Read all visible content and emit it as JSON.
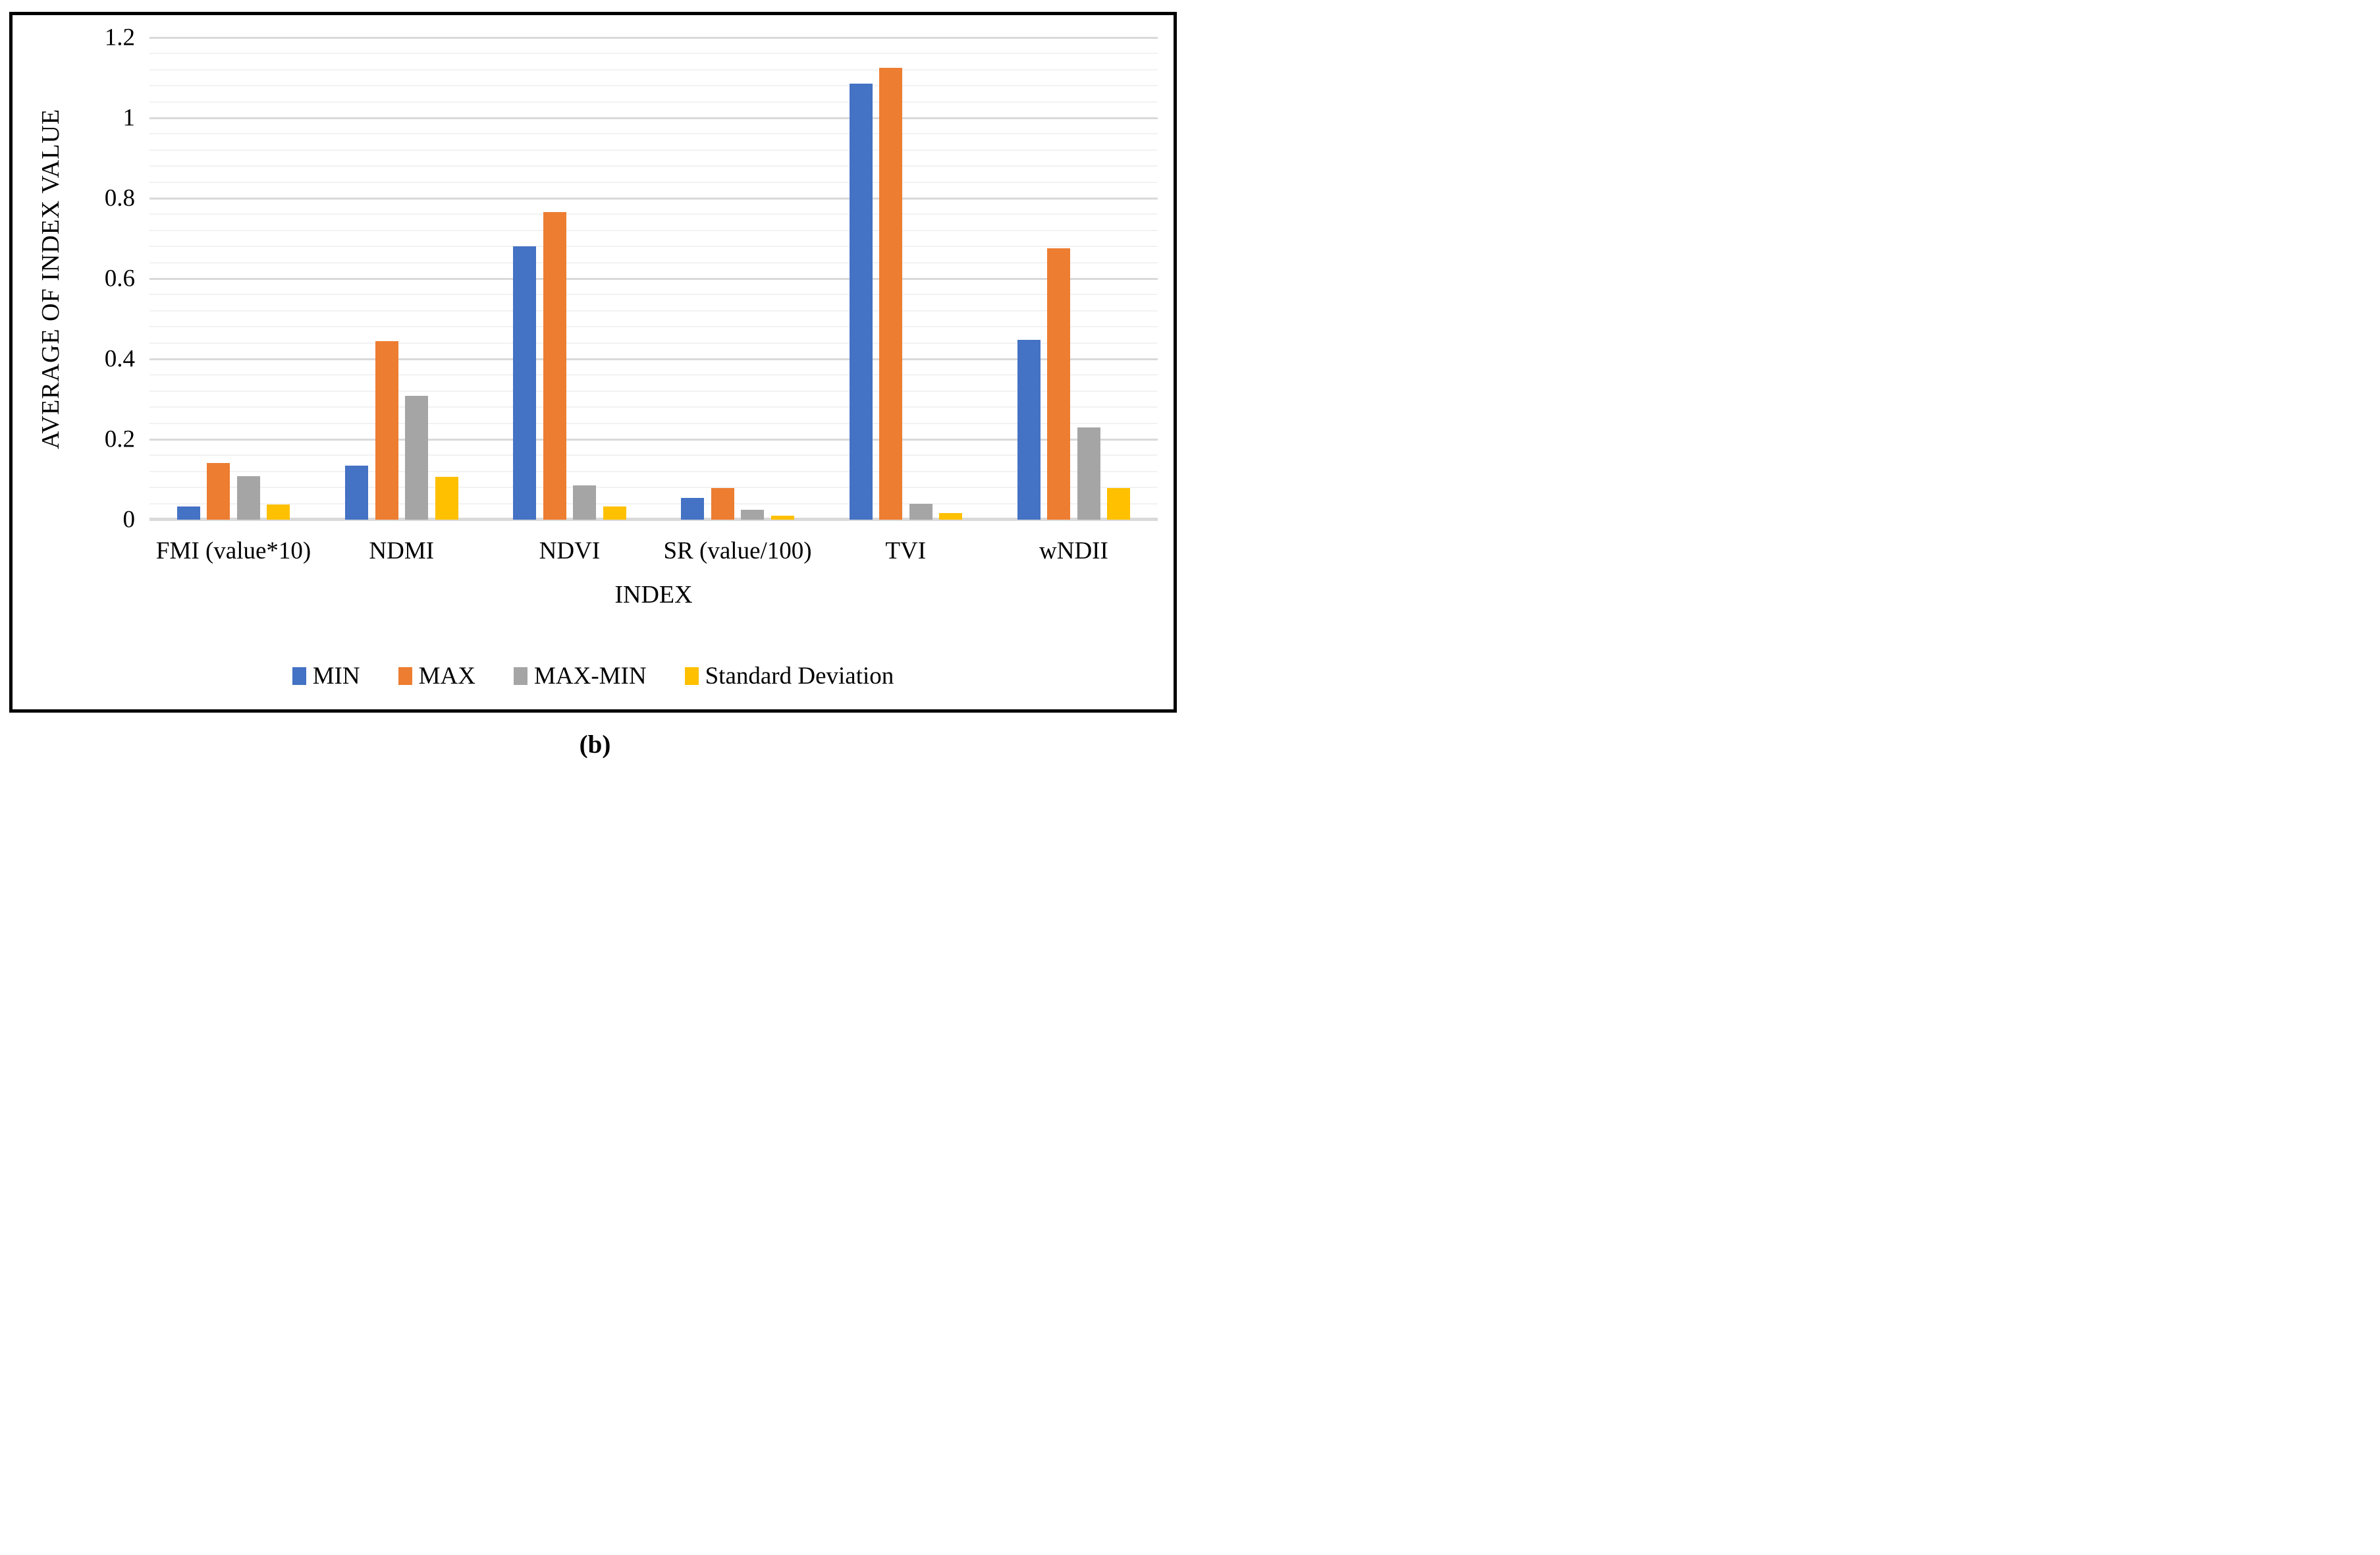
{
  "figure": {
    "caption": "(b)",
    "y_axis_title": "AVERAGE OF INDEX VALUE",
    "x_axis_title": "INDEX"
  },
  "chart_data": {
    "type": "bar",
    "title": "",
    "xlabel": "INDEX",
    "ylabel": "AVERAGE OF INDEX VALUE",
    "ylim": [
      0,
      1.2
    ],
    "y_major_step": 0.2,
    "y_minor_step": 0.04,
    "grid": true,
    "legend_position": "bottom",
    "categories": [
      "FMI (value*10)",
      "NDMI",
      "NDVI",
      "SR (value/100)",
      "TVI",
      "wNDII"
    ],
    "yticks": [
      {
        "v": 0,
        "label": "0"
      },
      {
        "v": 0.2,
        "label": "0.2"
      },
      {
        "v": 0.4,
        "label": "0.4"
      },
      {
        "v": 0.6,
        "label": "0.6"
      },
      {
        "v": 0.8,
        "label": "0.8"
      },
      {
        "v": 1.0,
        "label": "1"
      },
      {
        "v": 1.2,
        "label": "1.2"
      }
    ],
    "series": [
      {
        "name": "MIN",
        "color": "#4472C4",
        "values": [
          0.033,
          0.135,
          0.68,
          0.054,
          1.086,
          0.448
        ]
      },
      {
        "name": "MAX",
        "color": "#ED7D31",
        "values": [
          0.141,
          0.444,
          0.765,
          0.078,
          1.125,
          0.676
        ]
      },
      {
        "name": "MAX-MIN",
        "color": "#A5A5A5",
        "values": [
          0.108,
          0.308,
          0.086,
          0.025,
          0.04,
          0.229
        ]
      },
      {
        "name": "Standard Deviation",
        "color": "#FFC000",
        "values": [
          0.038,
          0.106,
          0.032,
          0.01,
          0.017,
          0.079
        ]
      }
    ]
  },
  "style_colors": {
    "major_gridline": "#d9d9d9",
    "minor_gridline": "#f2f2f2",
    "axis_line": "#d9d9d9",
    "frame_border": "#000000"
  }
}
